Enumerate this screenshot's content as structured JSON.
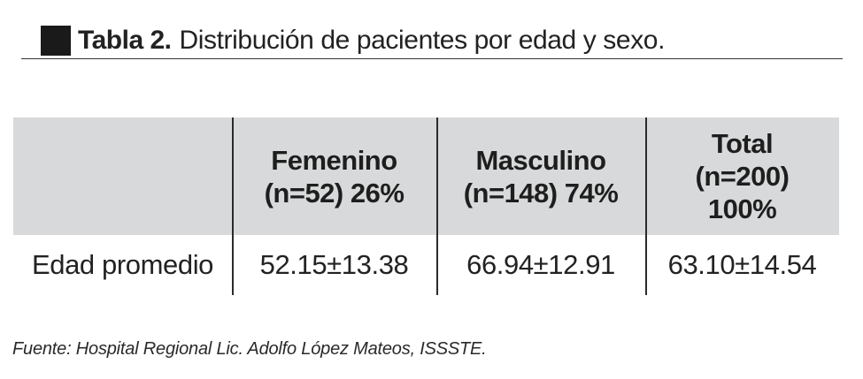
{
  "title": {
    "label": "Tabla 2.",
    "text": "Distribución de pacientes por edad y sexo."
  },
  "table": {
    "header": [
      {
        "lines": []
      },
      {
        "lines": [
          "Femenino",
          "(n=52) 26%"
        ]
      },
      {
        "lines": [
          "Masculino",
          "(n=148) 74%"
        ]
      },
      {
        "lines": [
          "Total",
          "(n=200)",
          "100%"
        ]
      }
    ],
    "rows": [
      {
        "label": "Edad promedio",
        "values": [
          "52.15±13.38",
          "66.94±12.91",
          "63.10±14.54"
        ]
      }
    ]
  },
  "source": "Fuente: Hospital Regional Lic. Adolfo López Mateos, ISSSTE.",
  "colors": {
    "header_background": "#d8d9da",
    "title_square": "#1a1a1a"
  }
}
